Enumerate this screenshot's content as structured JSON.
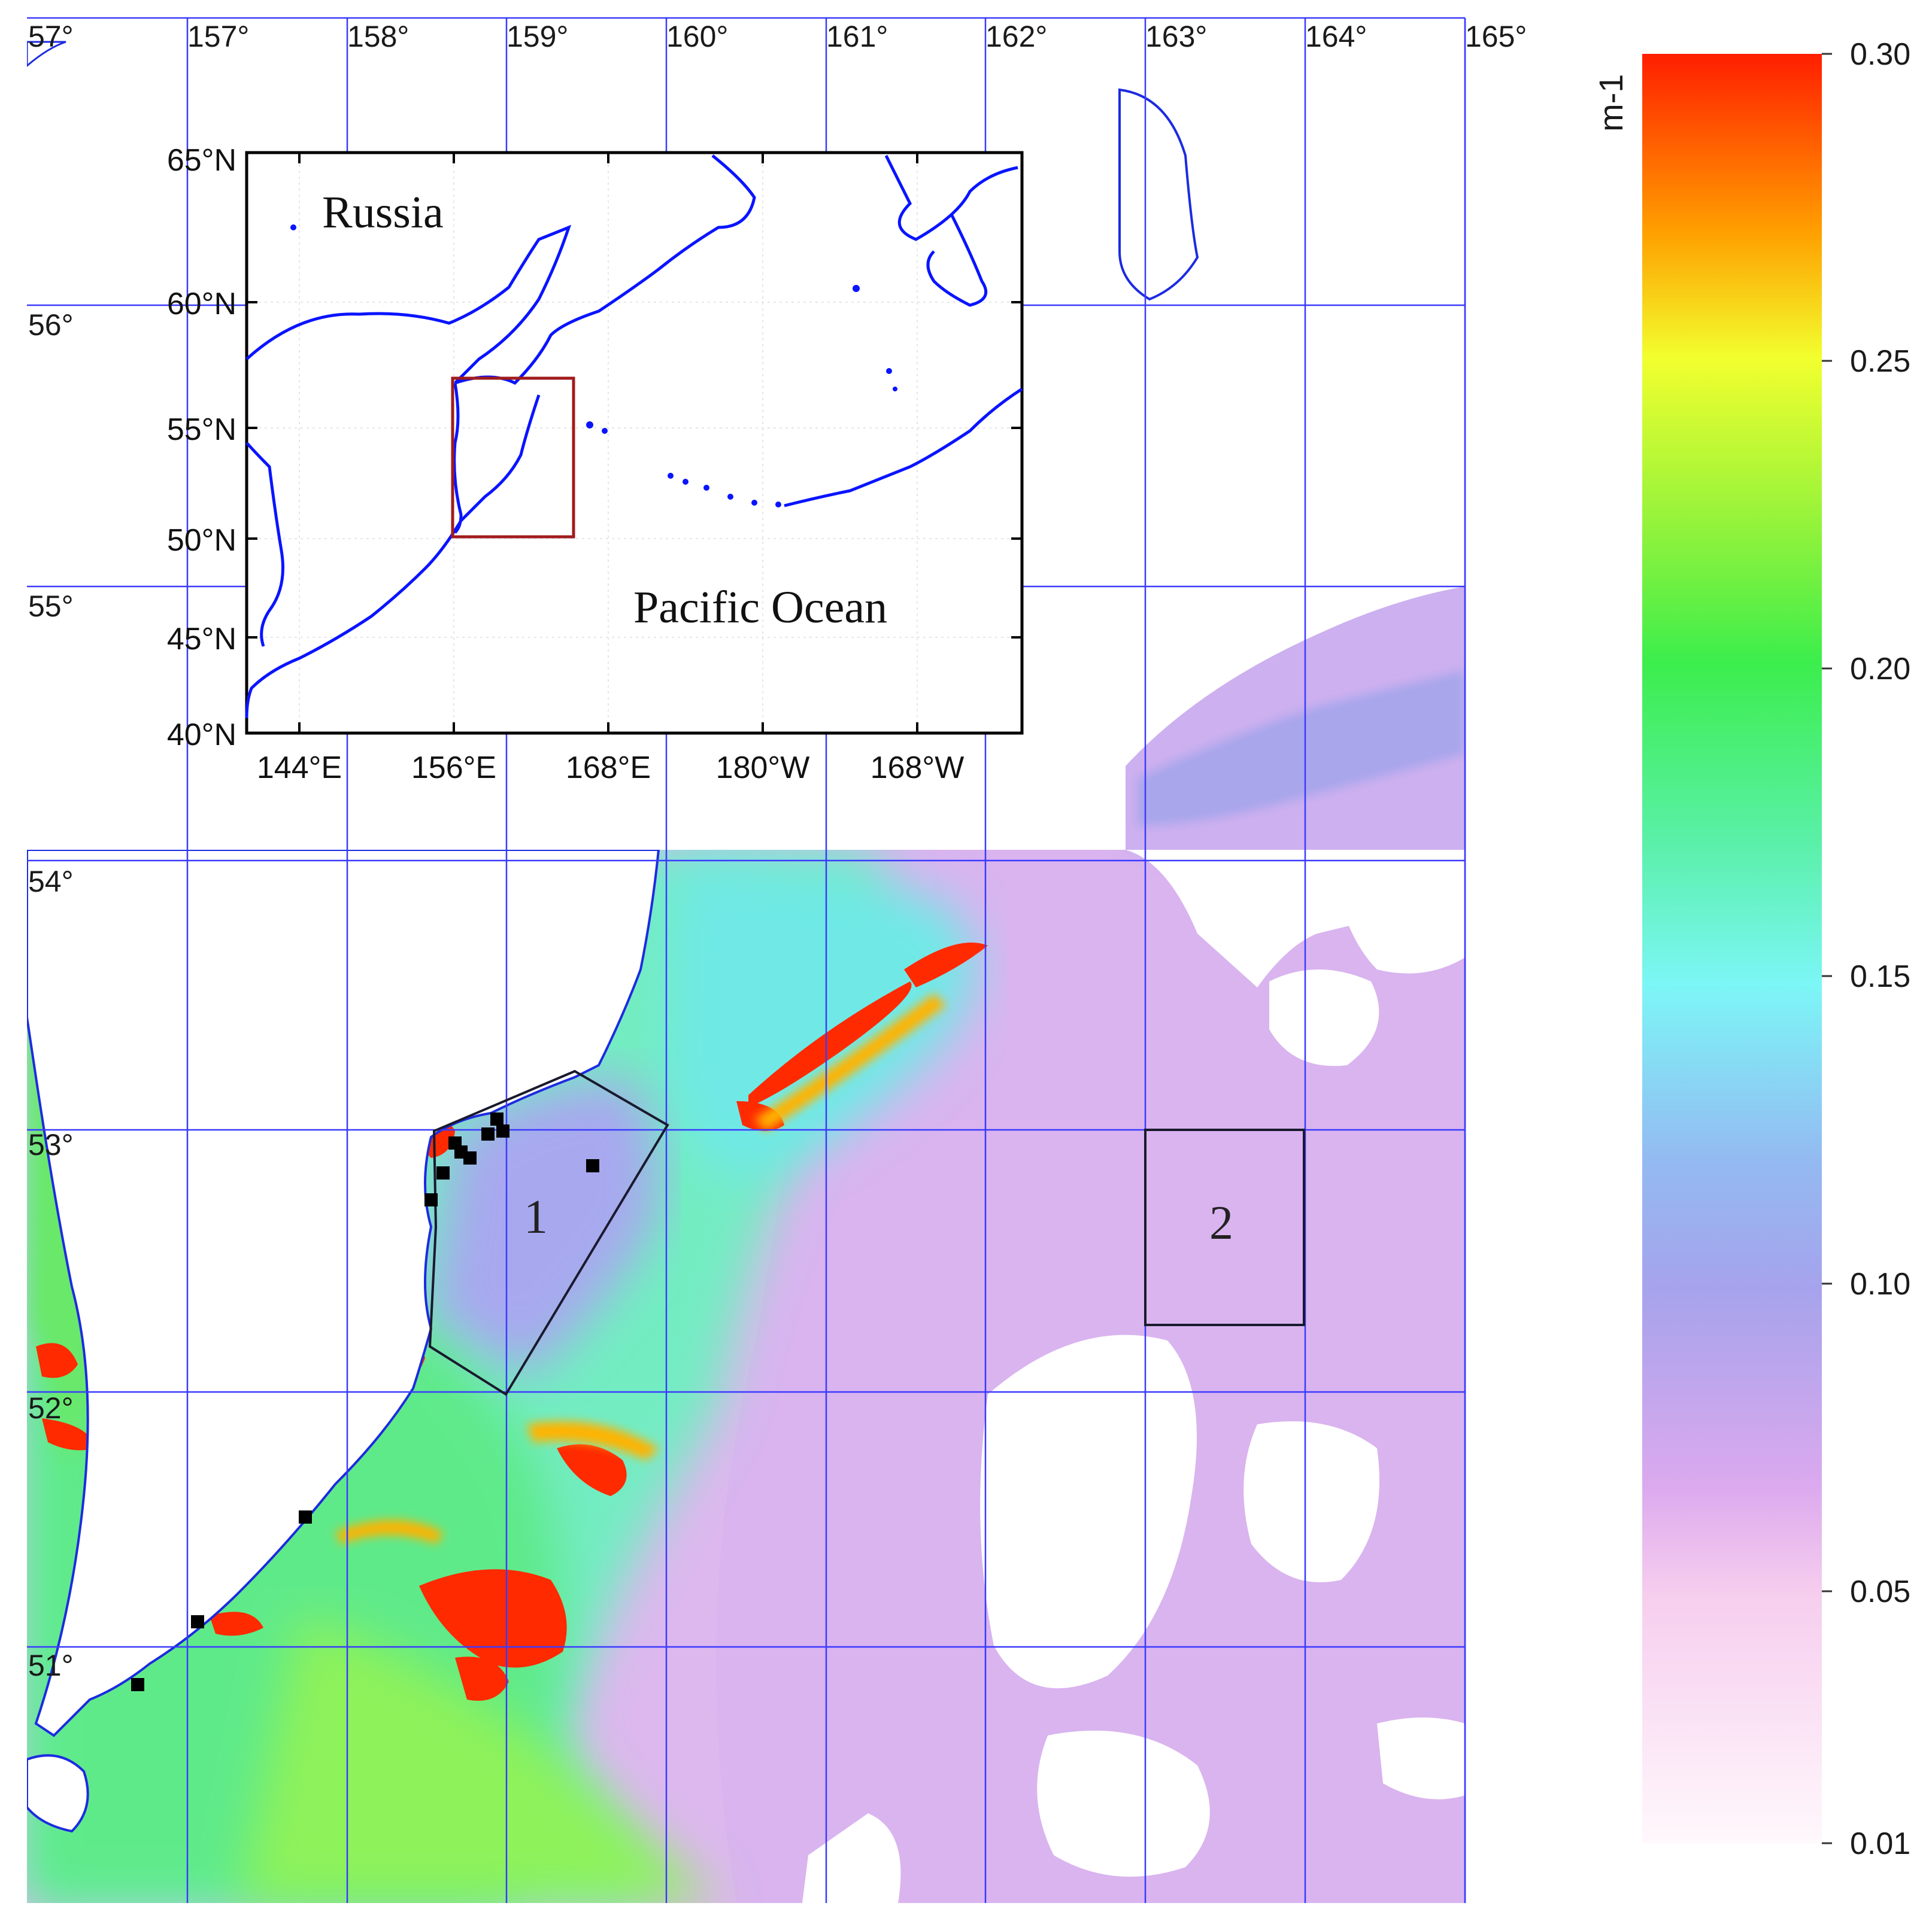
{
  "map": {
    "lon_ticks": [
      "57°",
      "157°",
      "158°",
      "159°",
      "160°",
      "161°",
      "162°",
      "163°",
      "164°",
      "165°"
    ],
    "lat_ticks": [
      "56°",
      "55°",
      "54°",
      "53°",
      "52°",
      "51°"
    ],
    "regions": [
      {
        "id": "1",
        "label": "1",
        "shape": "polygon"
      },
      {
        "id": "2",
        "label": "2",
        "shape": "rectangle"
      }
    ],
    "station_count": 12,
    "colors": {
      "grid": "#3a3aff",
      "coastline": "#1c2be0",
      "land": "#ffffff",
      "station": "#000000",
      "region_outline": "#1a1a2e"
    }
  },
  "inset": {
    "lat_ticks": [
      "65°N",
      "60°N",
      "55°N",
      "50°N",
      "45°N",
      "40°N"
    ],
    "lon_ticks": [
      "144°E",
      "156°E",
      "168°E",
      "180°W",
      "168°W"
    ],
    "places": {
      "land": "Russia",
      "ocean": "Pacific Ocean"
    },
    "highlight_color": "#a01c1c",
    "coast_color": "#0a14ff"
  },
  "colorbar": {
    "unit": "m-1",
    "ticks": [
      "0.30",
      "0.25",
      "0.20",
      "0.15",
      "0.10",
      "0.05",
      "0.01"
    ],
    "stops": [
      {
        "value": 0.3,
        "color": "#ff1e00"
      },
      {
        "value": 0.27,
        "color": "#ffa000"
      },
      {
        "value": 0.25,
        "color": "#f2ff2e"
      },
      {
        "value": 0.22,
        "color": "#8cf23c"
      },
      {
        "value": 0.2,
        "color": "#3cee4c"
      },
      {
        "value": 0.17,
        "color": "#5af0a8"
      },
      {
        "value": 0.15,
        "color": "#7cf6f6"
      },
      {
        "value": 0.12,
        "color": "#94b9f2"
      },
      {
        "value": 0.1,
        "color": "#a6a3ec"
      },
      {
        "value": 0.07,
        "color": "#dba9ee"
      },
      {
        "value": 0.05,
        "color": "#f6cdee"
      },
      {
        "value": 0.01,
        "color": "#fff8fc"
      }
    ]
  }
}
